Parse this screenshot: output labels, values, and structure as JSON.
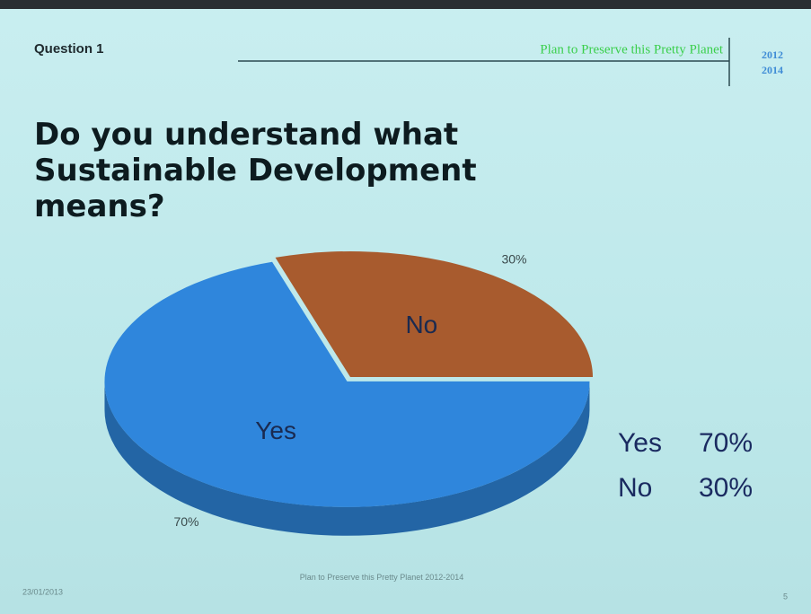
{
  "header": {
    "question": "Question 1",
    "project": "Plan to Preserve this Pretty Planet",
    "years": [
      "2012",
      "2014"
    ]
  },
  "chart_data": {
    "type": "pie",
    "title": "Do you understand what Sustainable Development means?",
    "categories": [
      "Yes",
      "No"
    ],
    "values": [
      70,
      30
    ],
    "value_labels": [
      "70%",
      "30%"
    ],
    "colors": [
      "#2f86dc",
      "#a85b2e"
    ]
  },
  "footer": {
    "date": "23/01/2013",
    "text": "Plan to Preserve this Pretty Planet 2012-2014",
    "page": "5"
  }
}
